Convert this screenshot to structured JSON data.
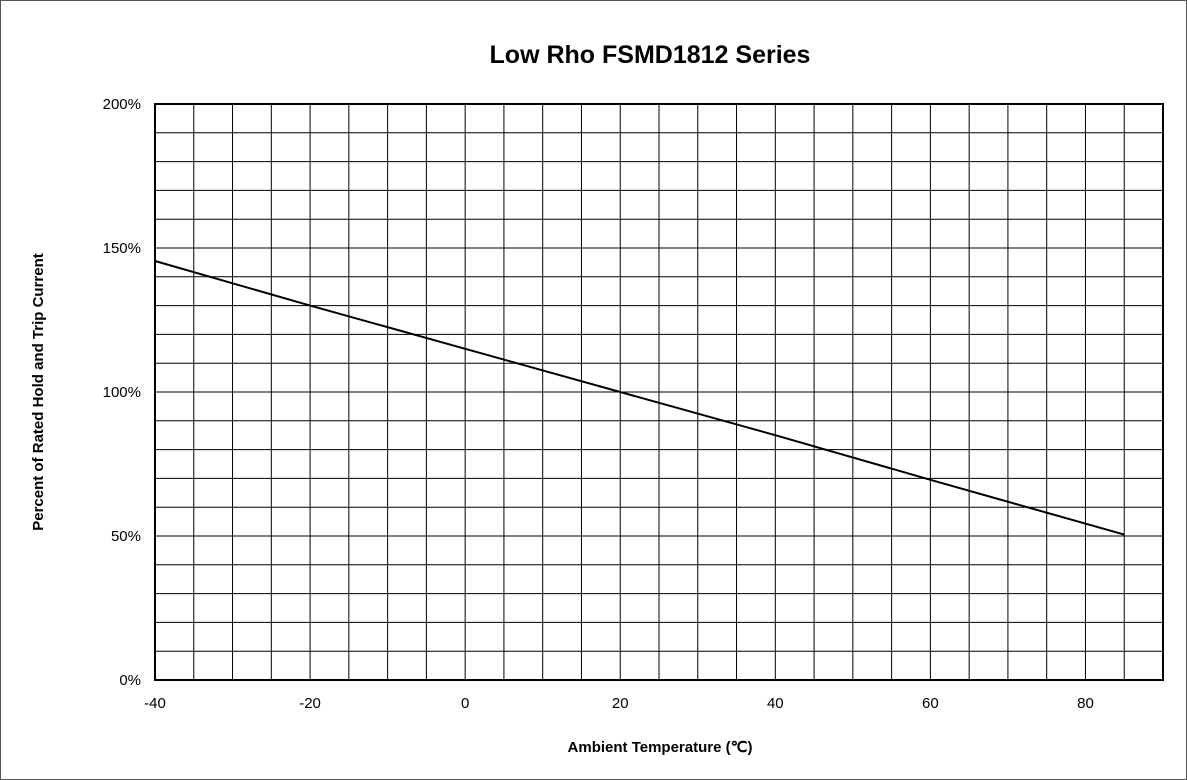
{
  "chart_data": {
    "type": "line",
    "title": "Low Rho FSMD1812 Series",
    "xlabel": "Ambient Temperature (℃)",
    "ylabel": "Percent of Rated Hold  and Trip Current",
    "xlim": [
      -40,
      90
    ],
    "ylim": [
      0,
      200
    ],
    "x_ticks": [
      "-40",
      "-20",
      "0",
      "20",
      "40",
      "60",
      "80"
    ],
    "y_ticks": [
      "0%",
      "50%",
      "100%",
      "150%",
      "200%"
    ],
    "grid": true,
    "series": [
      {
        "x": [
          -40,
          -20,
          0,
          20,
          40,
          60,
          85
        ],
        "y": [
          145.5,
          130,
          115,
          100,
          85,
          69.5,
          50.5
        ]
      }
    ]
  }
}
